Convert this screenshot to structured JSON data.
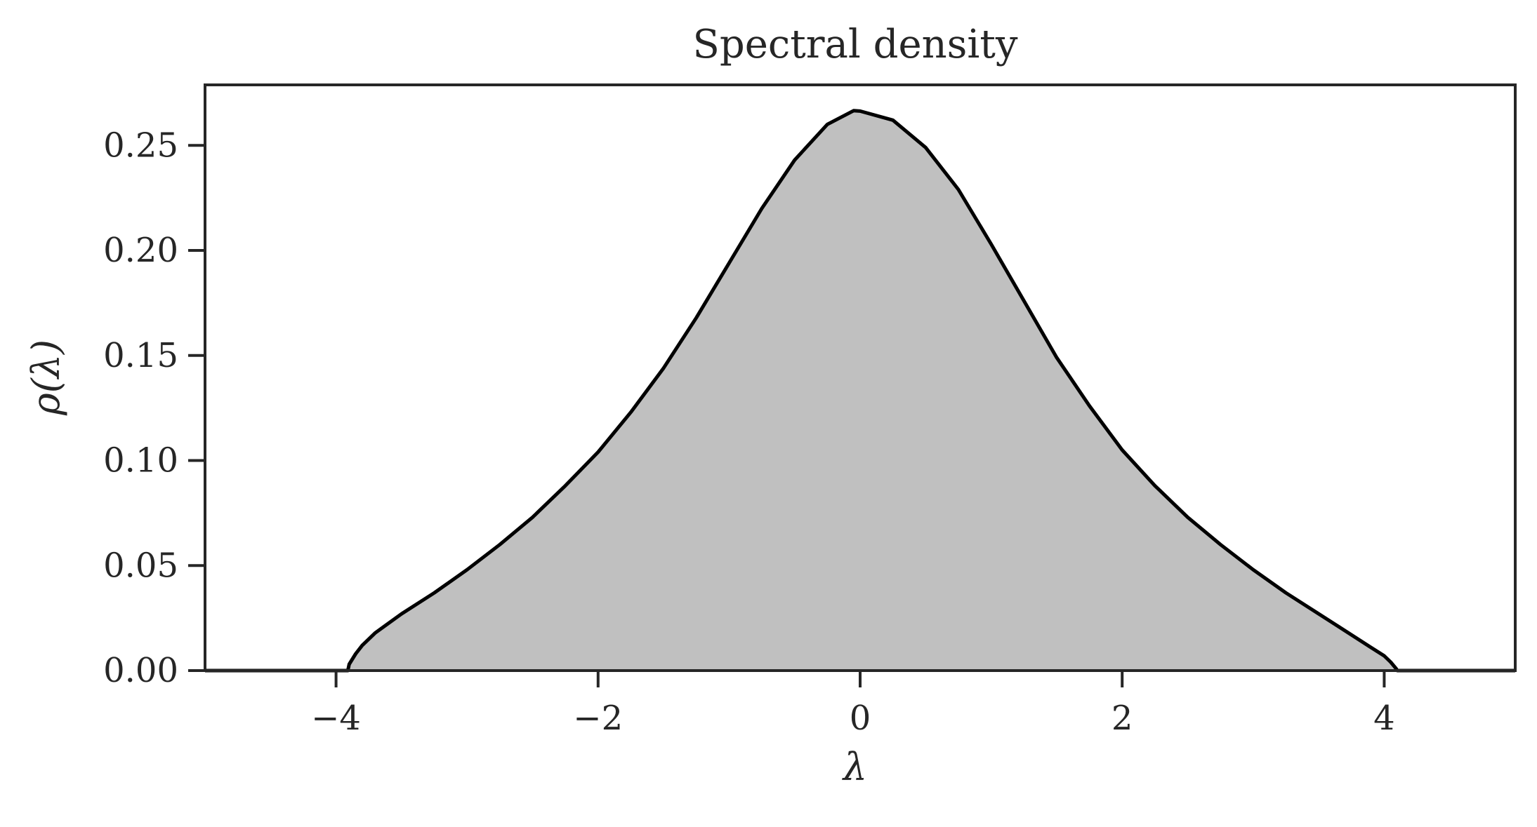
{
  "chart_data": {
    "type": "area",
    "title": "Spectral density",
    "xlabel": "λ",
    "ylabel": "ρ(λ)",
    "xlim": [
      -5,
      5
    ],
    "ylim": [
      0,
      0.2788
    ],
    "xticks": [
      -4,
      -2,
      0,
      2,
      4
    ],
    "xtick_labels": [
      "−4",
      "−2",
      "0",
      "2",
      "4"
    ],
    "yticks": [
      0.0,
      0.05,
      0.1,
      0.15,
      0.2,
      0.25
    ],
    "ytick_labels": [
      "0.00",
      "0.05",
      "0.10",
      "0.15",
      "0.20",
      "0.25"
    ],
    "grid": false,
    "legend": false,
    "colors": {
      "fill": "#c0c0c0",
      "line": "#000000",
      "frame": "#262626"
    },
    "series": [
      {
        "x": [
          -5.0,
          -3.91,
          -3.9,
          -3.85,
          -3.8,
          -3.7,
          -3.5,
          -3.25,
          -3.0,
          -2.75,
          -2.5,
          -2.25,
          -2.0,
          -1.75,
          -1.5,
          -1.25,
          -1.0,
          -0.75,
          -0.5,
          -0.25,
          -0.05,
          0.0,
          0.25,
          0.5,
          0.75,
          1.0,
          1.25,
          1.5,
          1.75,
          2.0,
          2.25,
          2.5,
          2.75,
          3.0,
          3.25,
          3.5,
          3.75,
          3.9,
          4.0,
          4.05,
          4.09,
          4.1,
          5.0
        ],
        "values": [
          0.0,
          0.0,
          0.003,
          0.008,
          0.012,
          0.018,
          0.027,
          0.037,
          0.048,
          0.06,
          0.073,
          0.088,
          0.104,
          0.123,
          0.144,
          0.168,
          0.194,
          0.22,
          0.243,
          0.26,
          0.2665,
          0.2663,
          0.262,
          0.249,
          0.229,
          0.203,
          0.176,
          0.149,
          0.126,
          0.105,
          0.088,
          0.073,
          0.06,
          0.048,
          0.037,
          0.027,
          0.017,
          0.011,
          0.007,
          0.004,
          0.001,
          0.0,
          0.0
        ]
      }
    ]
  }
}
